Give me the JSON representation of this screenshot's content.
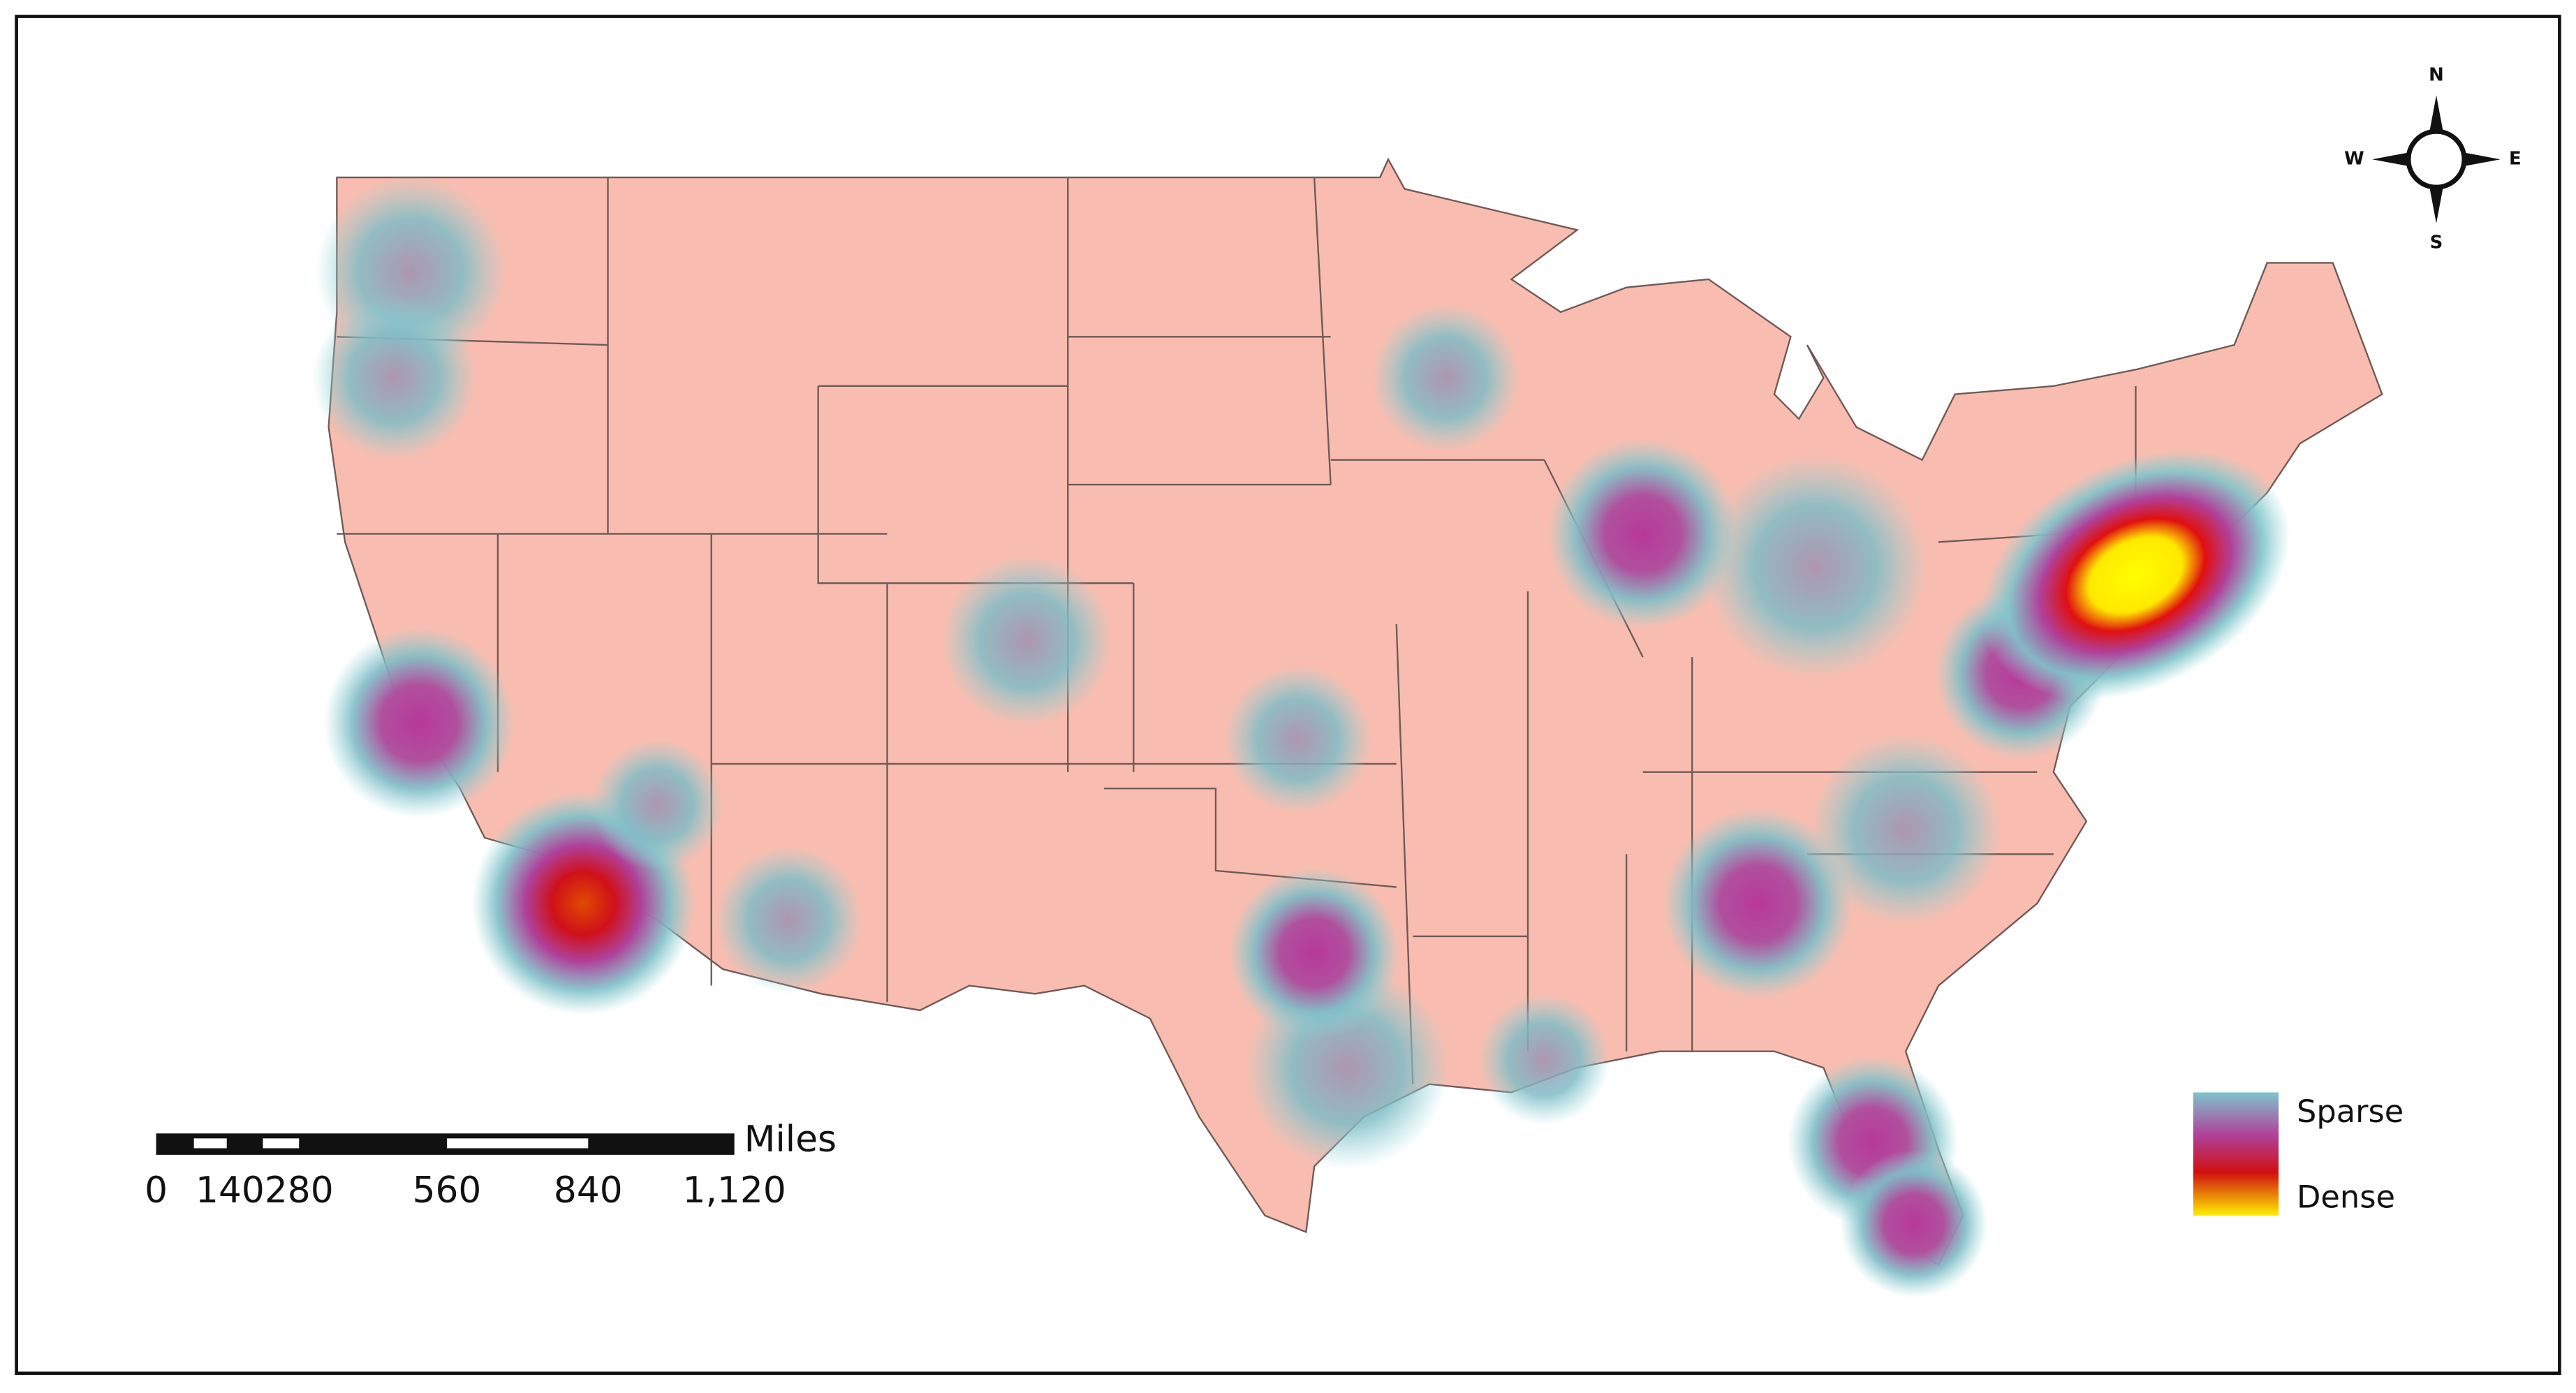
{
  "compass": {
    "north": "N",
    "south": "S",
    "east": "E",
    "west": "W"
  },
  "legend": {
    "low": "Sparse",
    "high": "Dense"
  },
  "scale_bar": {
    "unit": "Miles",
    "labels": [
      "0",
      "140",
      "280",
      "560",
      "840",
      "1,120"
    ]
  }
}
